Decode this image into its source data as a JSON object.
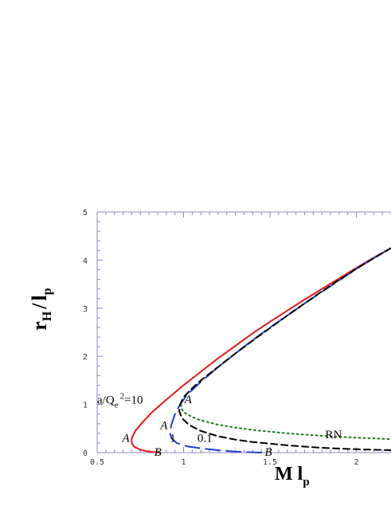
{
  "chart_data": {
    "type": "line",
    "title": "",
    "xlabel": {
      "main": "M l",
      "sub": "p"
    },
    "ylabel": {
      "r": "r",
      "r_sub": "H",
      "slash": "/",
      "l": "l",
      "l_sub": "p"
    },
    "xlim": [
      0.5,
      2.2
    ],
    "ylim": [
      0,
      5
    ],
    "x_ticks": [
      0.5,
      1,
      1.5,
      2
    ],
    "x_tick_labels": [
      "0.5",
      "1",
      "1.5",
      "2"
    ],
    "y_ticks": [
      0,
      1,
      2,
      3,
      4,
      5
    ],
    "y_tick_labels": [
      "0",
      "1",
      "2",
      "3",
      "4",
      "5"
    ],
    "grid": false,
    "series": [
      {
        "name": "a/Q_e^2=10",
        "color": "#e31a1c",
        "style": "solid",
        "points": [
          [
            0.86,
            0
          ],
          [
            0.8,
            0.02
          ],
          [
            0.75,
            0.06
          ],
          [
            0.715,
            0.12
          ],
          [
            0.7,
            0.2
          ],
          [
            0.7,
            0.3
          ],
          [
            0.72,
            0.45
          ],
          [
            0.76,
            0.62
          ],
          [
            0.82,
            0.85
          ],
          [
            0.9,
            1.1
          ],
          [
            1.0,
            1.4
          ],
          [
            1.1,
            1.68
          ],
          [
            1.2,
            1.96
          ],
          [
            1.3,
            2.22
          ],
          [
            1.4,
            2.48
          ],
          [
            1.5,
            2.72
          ],
          [
            1.6,
            2.95
          ],
          [
            1.7,
            3.18
          ],
          [
            1.8,
            3.4
          ],
          [
            1.9,
            3.62
          ],
          [
            2.0,
            3.84
          ],
          [
            2.1,
            4.05
          ],
          [
            2.2,
            4.25
          ]
        ]
      },
      {
        "name": "1",
        "color": "#1f3fcf",
        "style": "longdash",
        "points": [
          [
            1.45,
            0
          ],
          [
            1.3,
            0.02
          ],
          [
            1.2,
            0.05
          ],
          [
            1.1,
            0.09
          ],
          [
            1.02,
            0.13
          ],
          [
            0.96,
            0.2
          ],
          [
            0.93,
            0.3
          ],
          [
            0.92,
            0.42
          ],
          [
            0.93,
            0.58
          ],
          [
            0.95,
            0.8
          ],
          [
            0.98,
            1.0
          ],
          [
            1.02,
            1.2
          ],
          [
            1.1,
            1.47
          ],
          [
            1.2,
            1.78
          ],
          [
            1.3,
            2.06
          ],
          [
            1.4,
            2.34
          ],
          [
            1.5,
            2.6
          ],
          [
            1.6,
            2.85
          ],
          [
            1.7,
            3.1
          ],
          [
            1.8,
            3.34
          ],
          [
            1.9,
            3.58
          ],
          [
            2.0,
            3.82
          ],
          [
            2.1,
            4.04
          ],
          [
            2.2,
            4.25
          ]
        ]
      },
      {
        "name": "0.1",
        "color": "#000000",
        "style": "dash",
        "points": [
          [
            2.2,
            0.05
          ],
          [
            2.0,
            0.07
          ],
          [
            1.8,
            0.1
          ],
          [
            1.6,
            0.15
          ],
          [
            1.4,
            0.22
          ],
          [
            1.3,
            0.27
          ],
          [
            1.2,
            0.34
          ],
          [
            1.1,
            0.45
          ],
          [
            1.03,
            0.58
          ],
          [
            0.99,
            0.72
          ],
          [
            0.975,
            0.86
          ],
          [
            0.98,
            1.0
          ],
          [
            1.0,
            1.15
          ],
          [
            1.05,
            1.34
          ],
          [
            1.1,
            1.5
          ],
          [
            1.2,
            1.78
          ],
          [
            1.3,
            2.06
          ],
          [
            1.4,
            2.33
          ],
          [
            1.5,
            2.59
          ],
          [
            1.6,
            2.85
          ],
          [
            1.7,
            3.1
          ],
          [
            1.8,
            3.35
          ],
          [
            1.9,
            3.59
          ],
          [
            2.0,
            3.82
          ],
          [
            2.1,
            4.04
          ],
          [
            2.2,
            4.25
          ]
        ]
      },
      {
        "name": "RN",
        "color": "#1a7a1a",
        "style": "dot",
        "points": [
          [
            0.985,
            1.0
          ],
          [
            0.99,
            0.9
          ],
          [
            1.01,
            0.82
          ],
          [
            1.05,
            0.74
          ],
          [
            1.1,
            0.67
          ],
          [
            1.2,
            0.58
          ],
          [
            1.3,
            0.52
          ],
          [
            1.4,
            0.47
          ],
          [
            1.6,
            0.4
          ],
          [
            1.8,
            0.35
          ],
          [
            2.0,
            0.31
          ],
          [
            2.2,
            0.28
          ]
        ]
      }
    ],
    "annotations": [
      {
        "text": "a/Q",
        "sub": "e",
        "sup": "2",
        "tail": "=10",
        "x": 0.5,
        "y": 1.02
      },
      {
        "text": "A",
        "italic": true,
        "x": 0.645,
        "y": 0.22
      },
      {
        "text": "B",
        "italic": true,
        "x": 0.83,
        "y": -0.07
      },
      {
        "text": "A",
        "italic": true,
        "x": 0.865,
        "y": 0.49
      },
      {
        "text": "1",
        "italic": false,
        "x": 0.92,
        "y": 0.22
      },
      {
        "text": "A",
        "italic": true,
        "x": 1.005,
        "y": 1.03
      },
      {
        "text": "0.1",
        "italic": false,
        "x": 1.08,
        "y": 0.22
      },
      {
        "text": "B",
        "italic": true,
        "x": 1.47,
        "y": -0.07
      },
      {
        "text": "RN",
        "italic": false,
        "x": 1.82,
        "y": 0.3
      }
    ]
  }
}
